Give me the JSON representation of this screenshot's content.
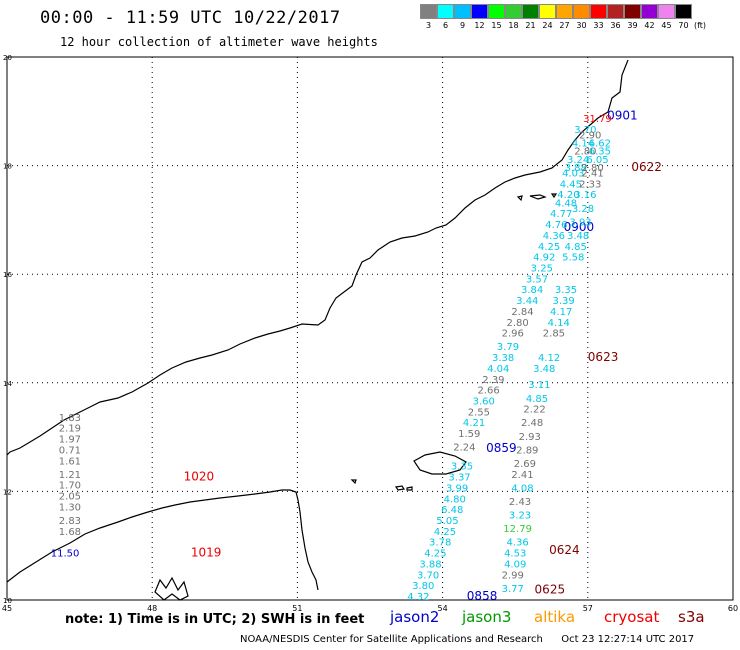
{
  "header": {
    "title": "00:00 - 11:59 UTC 10/22/2017",
    "subtitle": "12 hour collection of altimeter wave heights"
  },
  "legend": {
    "labels": [
      "3",
      "6",
      "9",
      "12",
      "15",
      "18",
      "21",
      "24",
      "27",
      "30",
      "33",
      "36",
      "39",
      "42",
      "45",
      "70"
    ],
    "colors": [
      "#808080",
      "#00ffff",
      "#00bfff",
      "#0000ff",
      "#00ff00",
      "#32cd32",
      "#008000",
      "#ffff00",
      "#ffa500",
      "#ff8c00",
      "#ff0000",
      "#b22222",
      "#800000",
      "#9400d3",
      "#ee82ee",
      "#000000"
    ],
    "unit": "(ft)"
  },
  "axes": {
    "x_labels": [
      "45",
      "48",
      "51",
      "54",
      "57",
      "60"
    ],
    "y_labels": [
      "20",
      "18",
      "16",
      "14",
      "12",
      "10"
    ]
  },
  "tracks": [
    {
      "name": "jason2",
      "color": "#0000cc",
      "label": "0901",
      "x": 57.4,
      "y": 18.85
    },
    {
      "name": "jason2",
      "color": "#0000cc",
      "label": "0900",
      "x": 56.5,
      "y": 16.8
    },
    {
      "name": "jason2",
      "color": "#0000cc",
      "label": "0859",
      "x": 54.9,
      "y": 12.73
    },
    {
      "name": "jason2",
      "color": "#0000cc",
      "label": "0858",
      "x": 54.5,
      "y": 10.0
    }
  ],
  "pass_labels": [
    {
      "label": "0622",
      "x": 57.9,
      "y": 17.9,
      "color": "#800000"
    },
    {
      "label": "0623",
      "x": 57.0,
      "y": 14.4,
      "color": "#800000"
    },
    {
      "label": "0624",
      "x": 56.2,
      "y": 10.85,
      "color": "#800000"
    },
    {
      "label": "0625",
      "x": 55.9,
      "y": 10.12,
      "color": "#800000"
    },
    {
      "label": "1020",
      "x": 48.65,
      "y": 12.2,
      "color": "#ee0000"
    },
    {
      "label": "1019",
      "x": 48.8,
      "y": 10.8,
      "color": "#ee0000"
    }
  ],
  "observations": [
    {
      "v": "31.79",
      "x": 57.2,
      "y": 18.8,
      "c": "#ff0000"
    },
    {
      "v": "3.70",
      "x": 56.95,
      "y": 18.6,
      "c": "#00c8e8"
    },
    {
      "v": "2.90",
      "x": 57.05,
      "y": 18.5,
      "c": "#707070"
    },
    {
      "v": "4.14",
      "x": 56.9,
      "y": 18.35,
      "c": "#00c8e8"
    },
    {
      "v": "6.62",
      "x": 57.25,
      "y": 18.35,
      "c": "#00c8e8"
    },
    {
      "v": "2.80",
      "x": 56.95,
      "y": 18.2,
      "c": "#707070"
    },
    {
      "v": "6.35",
      "x": 57.25,
      "y": 18.2,
      "c": "#00c8e8"
    },
    {
      "v": "3.24",
      "x": 56.8,
      "y": 18.05,
      "c": "#00c8e8"
    },
    {
      "v": "6.05",
      "x": 57.2,
      "y": 18.05,
      "c": "#00c8e8"
    },
    {
      "v": "3.88",
      "x": 56.75,
      "y": 17.9,
      "c": "#00c8e8"
    },
    {
      "v": "2.80",
      "x": 57.1,
      "y": 17.9,
      "c": "#707070"
    },
    {
      "v": "4.03",
      "x": 56.7,
      "y": 17.8,
      "c": "#00c8e8"
    },
    {
      "v": "2.41",
      "x": 57.1,
      "y": 17.8,
      "c": "#707070"
    },
    {
      "v": "4.45",
      "x": 56.65,
      "y": 17.6,
      "c": "#00c8e8"
    },
    {
      "v": "2.33",
      "x": 57.05,
      "y": 17.6,
      "c": "#707070"
    },
    {
      "v": "4.20",
      "x": 56.6,
      "y": 17.4,
      "c": "#00c8e8"
    },
    {
      "v": "3.16",
      "x": 56.95,
      "y": 17.4,
      "c": "#00c8e8"
    },
    {
      "v": "4.48",
      "x": 56.55,
      "y": 17.25,
      "c": "#00c8e8"
    },
    {
      "v": "3.28",
      "x": 56.9,
      "y": 17.15,
      "c": "#00c8e8"
    },
    {
      "v": "4.77",
      "x": 56.45,
      "y": 17.05,
      "c": "#00c8e8"
    },
    {
      "v": "3.93",
      "x": 56.85,
      "y": 16.9,
      "c": "#00c8e8"
    },
    {
      "v": "4.76",
      "x": 56.35,
      "y": 16.85,
      "c": "#00c8e8"
    },
    {
      "v": "3.48",
      "x": 56.8,
      "y": 16.65,
      "c": "#00c8e8"
    },
    {
      "v": "4.36",
      "x": 56.3,
      "y": 16.65,
      "c": "#00c8e8"
    },
    {
      "v": "4.25",
      "x": 56.2,
      "y": 16.45,
      "c": "#00c8e8"
    },
    {
      "v": "4.85",
      "x": 56.75,
      "y": 16.45,
      "c": "#00c8e8"
    },
    {
      "v": "4.92",
      "x": 56.1,
      "y": 16.25,
      "c": "#00c8e8"
    },
    {
      "v": "5.58",
      "x": 56.7,
      "y": 16.25,
      "c": "#00c8e8"
    },
    {
      "v": "3.25",
      "x": 56.05,
      "y": 16.05,
      "c": "#00c8e8"
    },
    {
      "v": "3.57",
      "x": 55.95,
      "y": 15.85,
      "c": "#00c8e8"
    },
    {
      "v": "3.84",
      "x": 55.85,
      "y": 15.65,
      "c": "#00c8e8"
    },
    {
      "v": "3.35",
      "x": 56.55,
      "y": 15.65,
      "c": "#00c8e8"
    },
    {
      "v": "3.44",
      "x": 55.75,
      "y": 15.45,
      "c": "#00c8e8"
    },
    {
      "v": "3.39",
      "x": 56.5,
      "y": 15.45,
      "c": "#00c8e8"
    },
    {
      "v": "2.84",
      "x": 55.65,
      "y": 15.25,
      "c": "#707070"
    },
    {
      "v": "4.17",
      "x": 56.45,
      "y": 15.25,
      "c": "#00c8e8"
    },
    {
      "v": "2.80",
      "x": 55.55,
      "y": 15.05,
      "c": "#707070"
    },
    {
      "v": "4.14",
      "x": 56.4,
      "y": 15.05,
      "c": "#00c8e8"
    },
    {
      "v": "2.96",
      "x": 55.45,
      "y": 14.85,
      "c": "#707070"
    },
    {
      "v": "2.85",
      "x": 56.3,
      "y": 14.85,
      "c": "#707070"
    },
    {
      "v": "3.79",
      "x": 55.35,
      "y": 14.6,
      "c": "#00c8e8"
    },
    {
      "v": "3.38",
      "x": 55.25,
      "y": 14.4,
      "c": "#00c8e8"
    },
    {
      "v": "4.12",
      "x": 56.2,
      "y": 14.4,
      "c": "#00c8e8"
    },
    {
      "v": "4.04",
      "x": 55.15,
      "y": 14.2,
      "c": "#00c8e8"
    },
    {
      "v": "3.48",
      "x": 56.1,
      "y": 14.2,
      "c": "#00c8e8"
    },
    {
      "v": "2.39",
      "x": 55.05,
      "y": 14.0,
      "c": "#707070"
    },
    {
      "v": "2.66",
      "x": 54.95,
      "y": 13.8,
      "c": "#707070"
    },
    {
      "v": "3.11",
      "x": 56.0,
      "y": 13.9,
      "c": "#00c8e8"
    },
    {
      "v": "3.60",
      "x": 54.85,
      "y": 13.6,
      "c": "#00c8e8"
    },
    {
      "v": "4.85",
      "x": 55.95,
      "y": 13.65,
      "c": "#00c8e8"
    },
    {
      "v": "2.55",
      "x": 54.75,
      "y": 13.4,
      "c": "#707070"
    },
    {
      "v": "2.22",
      "x": 55.9,
      "y": 13.45,
      "c": "#707070"
    },
    {
      "v": "4.21",
      "x": 54.65,
      "y": 13.2,
      "c": "#00c8e8"
    },
    {
      "v": "2.48",
      "x": 55.85,
      "y": 13.2,
      "c": "#707070"
    },
    {
      "v": "1.59",
      "x": 54.55,
      "y": 13.0,
      "c": "#707070"
    },
    {
      "v": "2.93",
      "x": 55.8,
      "y": 12.95,
      "c": "#707070"
    },
    {
      "v": "2.24",
      "x": 54.45,
      "y": 12.75,
      "c": "#707070"
    },
    {
      "v": "2.89",
      "x": 55.75,
      "y": 12.7,
      "c": "#707070"
    },
    {
      "v": "2.69",
      "x": 55.7,
      "y": 12.45,
      "c": "#707070"
    },
    {
      "v": "3.35",
      "x": 54.4,
      "y": 12.4,
      "c": "#00c8e8"
    },
    {
      "v": "2.41",
      "x": 55.65,
      "y": 12.25,
      "c": "#707070"
    },
    {
      "v": "3.37",
      "x": 54.35,
      "y": 12.2,
      "c": "#00c8e8"
    },
    {
      "v": "4.08",
      "x": 55.65,
      "y": 12.0,
      "c": "#00c8e8"
    },
    {
      "v": "3.99",
      "x": 54.3,
      "y": 12.0,
      "c": "#00c8e8"
    },
    {
      "v": "4.80",
      "x": 54.25,
      "y": 11.8,
      "c": "#00c8e8"
    },
    {
      "v": "2.43",
      "x": 55.6,
      "y": 11.75,
      "c": "#707070"
    },
    {
      "v": "6.48",
      "x": 54.2,
      "y": 11.6,
      "c": "#00c8e8"
    },
    {
      "v": "3.23",
      "x": 55.6,
      "y": 11.5,
      "c": "#00c8e8"
    },
    {
      "v": "5.05",
      "x": 54.1,
      "y": 11.4,
      "c": "#00c8e8"
    },
    {
      "v": "12.79",
      "x": 55.55,
      "y": 11.25,
      "c": "#32cd32"
    },
    {
      "v": "4.25",
      "x": 54.05,
      "y": 11.2,
      "c": "#00c8e8"
    },
    {
      "v": "3.78",
      "x": 53.95,
      "y": 11.0,
      "c": "#00c8e8"
    },
    {
      "v": "4.36",
      "x": 55.55,
      "y": 11.0,
      "c": "#00c8e8"
    },
    {
      "v": "4.25",
      "x": 53.85,
      "y": 10.8,
      "c": "#00c8e8"
    },
    {
      "v": "4.53",
      "x": 55.5,
      "y": 10.8,
      "c": "#00c8e8"
    },
    {
      "v": "3.88",
      "x": 53.75,
      "y": 10.6,
      "c": "#00c8e8"
    },
    {
      "v": "4.09",
      "x": 55.5,
      "y": 10.6,
      "c": "#00c8e8"
    },
    {
      "v": "3.70",
      "x": 53.7,
      "y": 10.4,
      "c": "#00c8e8"
    },
    {
      "v": "2.99",
      "x": 55.45,
      "y": 10.4,
      "c": "#707070"
    },
    {
      "v": "3.80",
      "x": 53.6,
      "y": 10.2,
      "c": "#00c8e8"
    },
    {
      "v": "3.77",
      "x": 55.45,
      "y": 10.15,
      "c": "#00c8e8"
    },
    {
      "v": "4.32",
      "x": 53.5,
      "y": 10.0,
      "c": "#00c8e8"
    },
    {
      "v": "1.83",
      "x": 46.3,
      "y": 13.3,
      "c": "#707070"
    },
    {
      "v": "2.19",
      "x": 46.3,
      "y": 13.1,
      "c": "#707070"
    },
    {
      "v": "1.97",
      "x": 46.3,
      "y": 12.9,
      "c": "#707070"
    },
    {
      "v": "0.71",
      "x": 46.3,
      "y": 12.7,
      "c": "#707070"
    },
    {
      "v": "1.61",
      "x": 46.3,
      "y": 12.5,
      "c": "#707070"
    },
    {
      "v": "1.21",
      "x": 46.3,
      "y": 12.25,
      "c": "#707070"
    },
    {
      "v": "1.70",
      "x": 46.3,
      "y": 12.05,
      "c": "#707070"
    },
    {
      "v": "2.05",
      "x": 46.3,
      "y": 11.85,
      "c": "#707070"
    },
    {
      "v": "1.30",
      "x": 46.3,
      "y": 11.65,
      "c": "#707070"
    },
    {
      "v": "2.83",
      "x": 46.3,
      "y": 11.4,
      "c": "#707070"
    },
    {
      "v": "1.68",
      "x": 46.3,
      "y": 11.2,
      "c": "#707070"
    },
    {
      "v": "11.50",
      "x": 46.2,
      "y": 10.8,
      "c": "#0000cc"
    }
  ],
  "footer": {
    "note": "note: 1) Time is in UTC; 2) SWH is in feet",
    "satellites": [
      {
        "name": "jason2",
        "color": "#0000cc"
      },
      {
        "name": "jason3",
        "color": "#009900"
      },
      {
        "name": "altika",
        "color": "#ff9900"
      },
      {
        "name": "cryosat",
        "color": "#ee0000"
      },
      {
        "name": "s3a",
        "color": "#800000"
      }
    ],
    "credit": "NOAA/NESDIS Center for Satellite Applications and Research",
    "timestamp": "Oct 23 12:27:14 UTC 2017"
  }
}
